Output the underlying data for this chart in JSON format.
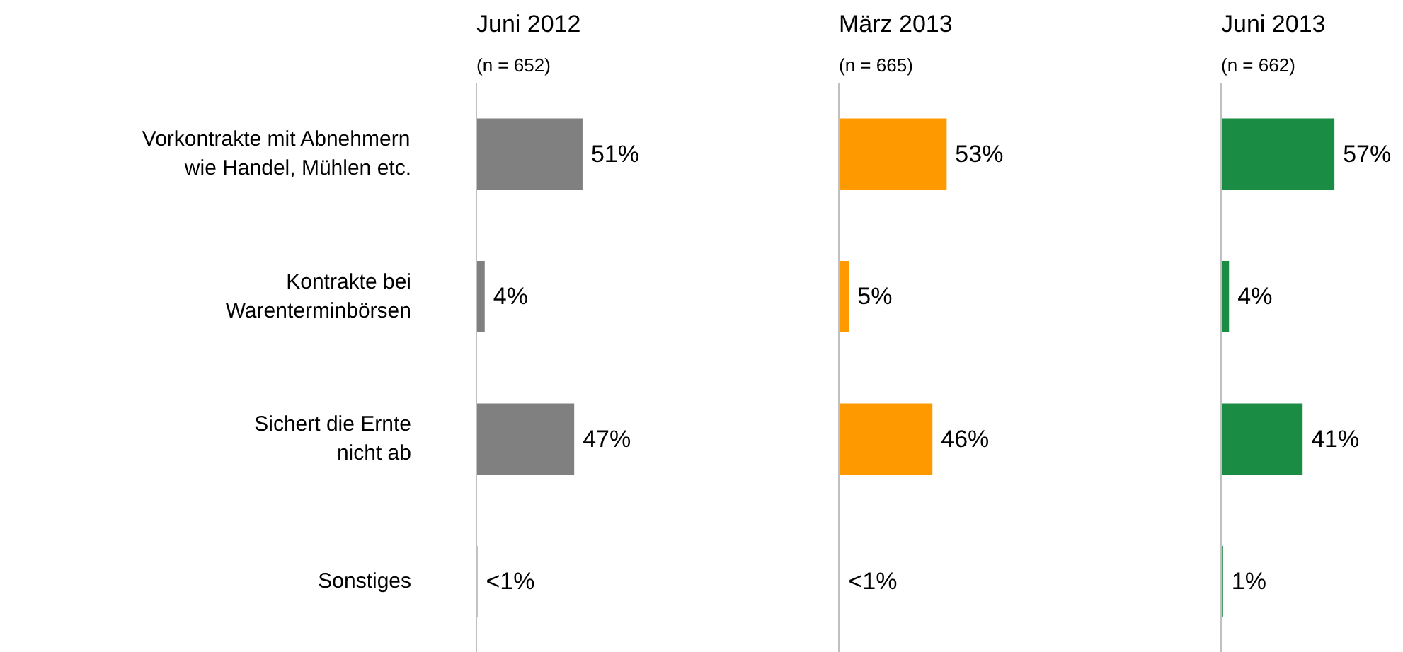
{
  "chart_data": [
    {
      "type": "bar",
      "orientation": "horizontal",
      "title": "Juni 2012",
      "subtitle": "(n = 652)",
      "categories": [
        "Vorkontrakte mit Abnehmern\nwie Handel, Mühlen etc.",
        "Kontrakte bei\nWarenterminbörsen",
        "Sichert die Ernte\nnicht ab",
        "Sonstiges"
      ],
      "values": [
        51,
        4,
        47,
        0.5
      ],
      "value_labels": [
        "51%",
        "4%",
        "47%",
        "<1%"
      ],
      "color": "#808080",
      "tick_labels": "y"
    },
    {
      "type": "bar",
      "orientation": "horizontal",
      "title": "März 2013",
      "subtitle": "(n = 665)",
      "categories": [
        null,
        null,
        null,
        null
      ],
      "values": [
        53,
        5,
        46,
        0.5
      ],
      "value_labels": [
        "53%",
        "5%",
        "46%",
        "<1%"
      ],
      "color": "#ff9900",
      "tick_labels": false
    },
    {
      "type": "bar",
      "orientation": "horizontal",
      "title": "Juni 2013",
      "subtitle": "(n = 662)",
      "categories": [
        null,
        null,
        null,
        null
      ],
      "values": [
        57,
        4,
        41,
        1
      ],
      "value_labels": [
        "57%",
        "4%",
        "41%",
        "1%"
      ],
      "color": "#1a8c44",
      "tick_labels": false
    }
  ]
}
